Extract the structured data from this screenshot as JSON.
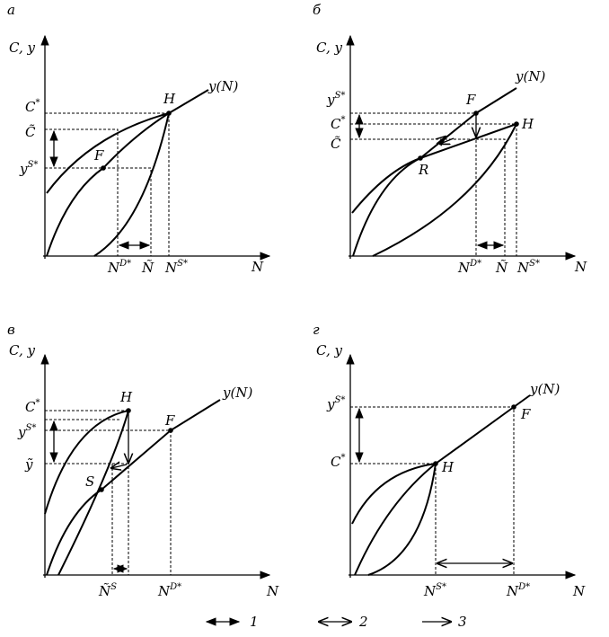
{
  "panels": [
    {
      "letter": "а",
      "axis_y": "C, y",
      "axis_x": "N",
      "curve": "y(N)",
      "points": [
        "H",
        "F"
      ],
      "labels": [
        {
          "base": "C",
          "sup": "*"
        },
        {
          "base": "C̃"
        },
        {
          "base": "y",
          "sup": "S*"
        },
        {
          "base": "N",
          "sup": "D*"
        },
        {
          "base": "Ñ"
        },
        {
          "base": "N",
          "sup": "S*"
        }
      ]
    },
    {
      "letter": "б",
      "axis_y": "C, y",
      "axis_x": "N",
      "curve": "y(N)",
      "points": [
        "F",
        "H",
        "R"
      ],
      "labels": [
        {
          "base": "y",
          "sup": "S*"
        },
        {
          "base": "C",
          "sup": "*"
        },
        {
          "base": "C̃"
        },
        {
          "base": "N",
          "sup": "D*"
        },
        {
          "base": "Ñ"
        },
        {
          "base": "N",
          "sup": "S*"
        }
      ]
    },
    {
      "letter": "в",
      "axis_y": "C, y",
      "axis_x": "N",
      "curve": "y(N)",
      "points": [
        "H",
        "F",
        "S"
      ],
      "labels": [
        {
          "base": "C",
          "sup": "*"
        },
        {
          "base": "y",
          "sup": "S*"
        },
        {
          "base": "ỹ"
        },
        {
          "base": "Ñ",
          "sup": "S"
        },
        {
          "base": "N",
          "sup": "D*"
        }
      ]
    },
    {
      "letter": "г",
      "axis_y": "C, y",
      "axis_x": "N",
      "curve": "y(N)",
      "points": [
        "H",
        "F"
      ],
      "labels": [
        {
          "base": "y",
          "sup": "S*"
        },
        {
          "base": "C",
          "sup": "*"
        },
        {
          "base": "N",
          "sup": "S*"
        },
        {
          "base": "N",
          "sup": "D*"
        }
      ]
    }
  ],
  "legend": [
    "1",
    "2",
    "3"
  ]
}
